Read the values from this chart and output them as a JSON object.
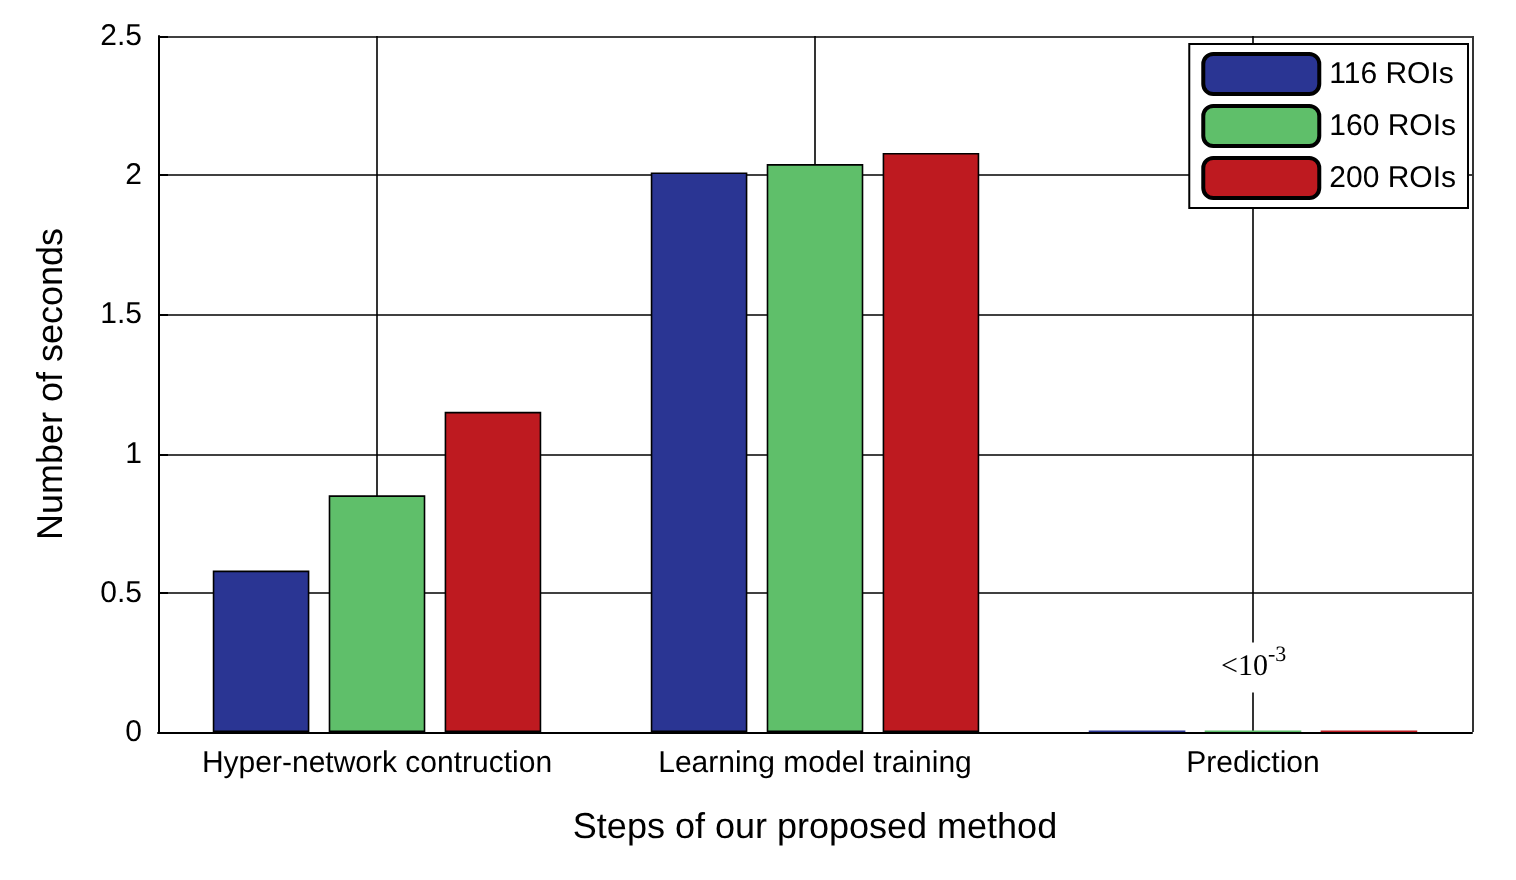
{
  "chart_data": {
    "type": "bar",
    "xlabel": "Steps of our proposed method",
    "ylabel": "Number of seconds",
    "categories": [
      "Hyper-network contruction",
      "Learning model training",
      "Prediction"
    ],
    "series": [
      {
        "name": "116 ROIs",
        "color": "#2a3593",
        "values": [
          0.58,
          2.01,
          0.005
        ]
      },
      {
        "name": "160 ROIs",
        "color": "#5fbf6a",
        "values": [
          0.85,
          2.04,
          0.005
        ]
      },
      {
        "name": "200 ROIs",
        "color": "#be1a20",
        "values": [
          1.15,
          2.08,
          0.005
        ]
      }
    ],
    "ylim": [
      0,
      2.5
    ],
    "yticks": [
      0,
      0.5,
      1,
      1.5,
      2,
      2.5
    ],
    "grid": true,
    "legend": "top right",
    "annotations": [
      "<10$^{-3}$"
    ]
  }
}
